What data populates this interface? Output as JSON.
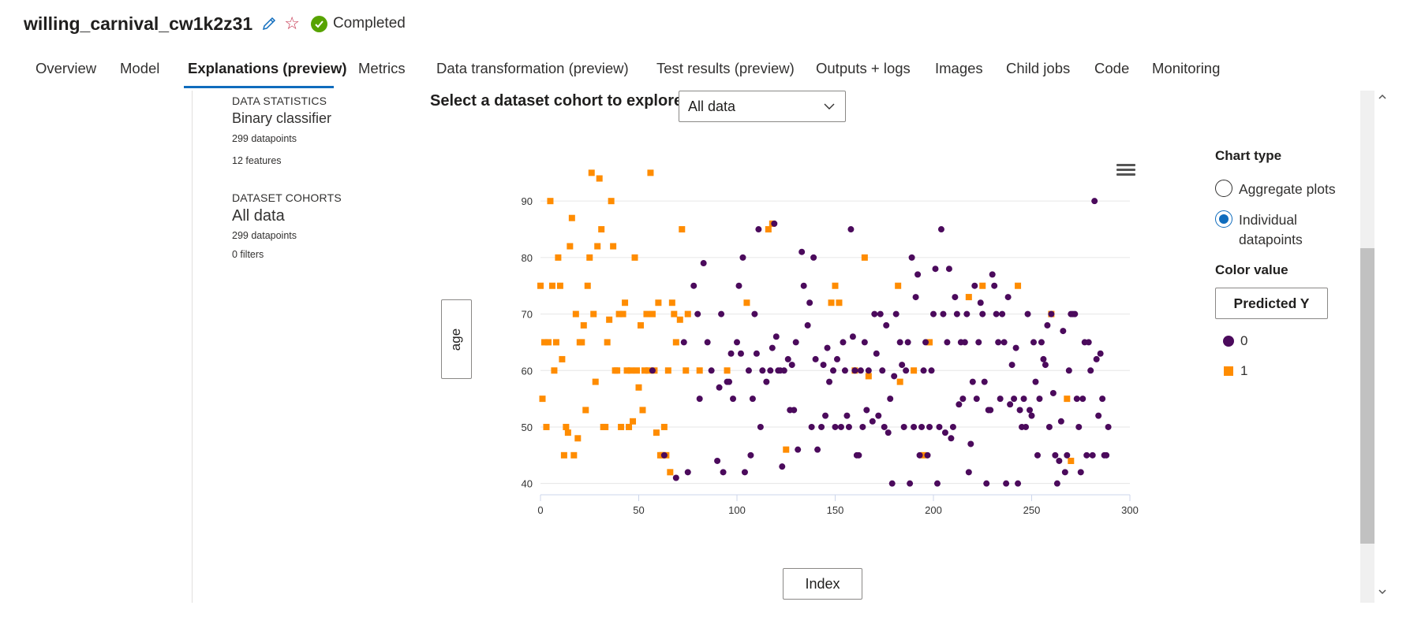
{
  "header": {
    "title": "willing_carnival_cw1k2z31",
    "status": "Completed",
    "edit_icon": "pencil-icon",
    "favorite_icon": "star-outline-icon",
    "status_icon": "check-circle-icon",
    "status_color": "#57a300"
  },
  "tabs": [
    {
      "label": "Overview"
    },
    {
      "label": "Model"
    },
    {
      "label": "Explanations (preview)",
      "active": true
    },
    {
      "label": "Metrics"
    },
    {
      "label": "Data transformation (preview)"
    },
    {
      "label": "Test results (preview)"
    },
    {
      "label": "Outputs + logs"
    },
    {
      "label": "Images"
    },
    {
      "label": "Child jobs"
    },
    {
      "label": "Code"
    },
    {
      "label": "Monitoring"
    }
  ],
  "sidebar": {
    "stats_header": "DATA STATISTICS",
    "classifier": "Binary classifier",
    "datapoints": "299 datapoints",
    "features": "12 features",
    "cohorts_header": "DATASET COHORTS",
    "cohort_name": "All data",
    "cohort_datapoints": "299 datapoints",
    "cohort_filters": "0 filters"
  },
  "cohort": {
    "label": "Select a dataset cohort to explore",
    "selected": "All data"
  },
  "axes": {
    "y_button": "age",
    "x_button": "Index"
  },
  "options": {
    "chart_type_label": "Chart type",
    "aggregate_label": "Aggregate plots",
    "individual_label": "Individual datapoints",
    "selected_chart_type": "Individual datapoints",
    "color_value_label": "Color value",
    "color_value_button": "Predicted Y",
    "legend": [
      {
        "label": "0",
        "color": "#4b0a5c",
        "shape": "circle"
      },
      {
        "label": "1",
        "color": "#ff8c00",
        "shape": "square"
      }
    ]
  },
  "chart_data": {
    "type": "scatter",
    "xlabel": "Index",
    "ylabel": "age",
    "xlim": [
      0,
      300
    ],
    "ylim": [
      38,
      97
    ],
    "xticks": [
      0,
      50,
      100,
      150,
      200,
      250,
      300
    ],
    "yticks": [
      40,
      50,
      60,
      70,
      80,
      90
    ],
    "grid": true,
    "legend_placement": "right",
    "series": [
      {
        "name": "1",
        "color": "#ff8c00",
        "marker": "square",
        "points": [
          [
            0,
            75
          ],
          [
            1,
            55
          ],
          [
            2,
            65
          ],
          [
            3,
            50
          ],
          [
            4,
            65
          ],
          [
            5,
            90
          ],
          [
            6,
            75
          ],
          [
            7,
            60
          ],
          [
            8,
            65
          ],
          [
            9,
            80
          ],
          [
            10,
            75
          ],
          [
            11,
            62
          ],
          [
            12,
            45
          ],
          [
            13,
            50
          ],
          [
            14,
            49
          ],
          [
            15,
            82
          ],
          [
            16,
            87
          ],
          [
            17,
            45
          ],
          [
            18,
            70
          ],
          [
            19,
            48
          ],
          [
            20,
            65
          ],
          [
            21,
            65
          ],
          [
            22,
            68
          ],
          [
            23,
            53
          ],
          [
            24,
            75
          ],
          [
            25,
            80
          ],
          [
            26,
            95
          ],
          [
            27,
            70
          ],
          [
            28,
            58
          ],
          [
            29,
            82
          ],
          [
            30,
            94
          ],
          [
            31,
            85
          ],
          [
            32,
            50
          ],
          [
            33,
            50
          ],
          [
            34,
            65
          ],
          [
            35,
            69
          ],
          [
            36,
            90
          ],
          [
            37,
            82
          ],
          [
            38,
            60
          ],
          [
            39,
            60
          ],
          [
            40,
            70
          ],
          [
            41,
            50
          ],
          [
            42,
            70
          ],
          [
            43,
            72
          ],
          [
            44,
            60
          ],
          [
            45,
            50
          ],
          [
            46,
            60
          ],
          [
            47,
            51
          ],
          [
            48,
            80
          ],
          [
            49,
            60
          ],
          [
            50,
            57
          ],
          [
            51,
            68
          ],
          [
            52,
            53
          ],
          [
            53,
            60
          ],
          [
            54,
            70
          ],
          [
            55,
            60
          ],
          [
            56,
            95
          ],
          [
            57,
            70
          ],
          [
            58,
            60
          ],
          [
            59,
            49
          ],
          [
            60,
            72
          ],
          [
            61,
            45
          ],
          [
            62,
            45
          ],
          [
            63,
            50
          ],
          [
            64,
            45
          ],
          [
            65,
            60
          ],
          [
            66,
            42
          ],
          [
            67,
            72
          ],
          [
            68,
            70
          ],
          [
            69,
            65
          ],
          [
            71,
            69
          ],
          [
            72,
            85
          ],
          [
            74,
            60
          ],
          [
            75,
            70
          ],
          [
            81,
            60
          ],
          [
            95,
            60
          ],
          [
            105,
            72
          ],
          [
            116,
            85
          ],
          [
            118,
            86
          ],
          [
            125,
            46
          ],
          [
            148,
            72
          ],
          [
            150,
            75
          ],
          [
            152,
            72
          ],
          [
            160,
            60
          ],
          [
            165,
            80
          ],
          [
            167,
            59
          ],
          [
            182,
            75
          ],
          [
            183,
            58
          ],
          [
            190,
            60
          ],
          [
            195,
            45
          ],
          [
            198,
            65
          ],
          [
            218,
            73
          ],
          [
            225,
            75
          ],
          [
            243,
            75
          ],
          [
            260,
            70
          ],
          [
            268,
            55
          ],
          [
            270,
            44
          ]
        ]
      },
      {
        "name": "0",
        "color": "#4b0a5c",
        "marker": "circle",
        "points": [
          [
            57,
            60
          ],
          [
            63,
            45
          ],
          [
            69,
            41
          ],
          [
            73,
            65
          ],
          [
            75,
            42
          ],
          [
            78,
            75
          ],
          [
            80,
            70
          ],
          [
            81,
            55
          ],
          [
            83,
            79
          ],
          [
            85,
            65
          ],
          [
            87,
            60
          ],
          [
            90,
            44
          ],
          [
            91,
            57
          ],
          [
            92,
            70
          ],
          [
            93,
            42
          ],
          [
            95,
            58
          ],
          [
            96,
            58
          ],
          [
            97,
            63
          ],
          [
            98,
            55
          ],
          [
            100,
            65
          ],
          [
            101,
            75
          ],
          [
            102,
            63
          ],
          [
            103,
            80
          ],
          [
            104,
            42
          ],
          [
            106,
            60
          ],
          [
            107,
            45
          ],
          [
            108,
            55
          ],
          [
            109,
            70
          ],
          [
            110,
            63
          ],
          [
            111,
            85
          ],
          [
            112,
            50
          ],
          [
            113,
            60
          ],
          [
            115,
            58
          ],
          [
            117,
            60
          ],
          [
            118,
            64
          ],
          [
            119,
            86
          ],
          [
            120,
            66
          ],
          [
            121,
            60
          ],
          [
            122,
            60
          ],
          [
            123,
            43
          ],
          [
            124,
            60
          ],
          [
            126,
            62
          ],
          [
            127,
            53
          ],
          [
            128,
            61
          ],
          [
            129,
            53
          ],
          [
            130,
            65
          ],
          [
            131,
            46
          ],
          [
            133,
            81
          ],
          [
            134,
            75
          ],
          [
            136,
            68
          ],
          [
            137,
            72
          ],
          [
            138,
            50
          ],
          [
            139,
            80
          ],
          [
            140,
            62
          ],
          [
            141,
            46
          ],
          [
            143,
            50
          ],
          [
            144,
            61
          ],
          [
            145,
            52
          ],
          [
            146,
            64
          ],
          [
            147,
            58
          ],
          [
            149,
            60
          ],
          [
            150,
            50
          ],
          [
            151,
            62
          ],
          [
            153,
            50
          ],
          [
            154,
            65
          ],
          [
            155,
            60
          ],
          [
            156,
            52
          ],
          [
            157,
            50
          ],
          [
            158,
            85
          ],
          [
            159,
            66
          ],
          [
            160,
            60
          ],
          [
            161,
            45
          ],
          [
            162,
            45
          ],
          [
            163,
            60
          ],
          [
            164,
            50
          ],
          [
            165,
            65
          ],
          [
            166,
            53
          ],
          [
            167,
            60
          ],
          [
            169,
            51
          ],
          [
            170,
            70
          ],
          [
            171,
            63
          ],
          [
            172,
            52
          ],
          [
            173,
            70
          ],
          [
            174,
            60
          ],
          [
            175,
            50
          ],
          [
            176,
            68
          ],
          [
            177,
            49
          ],
          [
            178,
            55
          ],
          [
            179,
            40
          ],
          [
            180,
            59
          ],
          [
            181,
            70
          ],
          [
            183,
            65
          ],
          [
            184,
            61
          ],
          [
            185,
            50
          ],
          [
            186,
            60
          ],
          [
            187,
            65
          ],
          [
            188,
            40
          ],
          [
            189,
            80
          ],
          [
            190,
            50
          ],
          [
            191,
            73
          ],
          [
            192,
            77
          ],
          [
            193,
            45
          ],
          [
            194,
            50
          ],
          [
            195,
            60
          ],
          [
            196,
            65
          ],
          [
            197,
            45
          ],
          [
            198,
            50
          ],
          [
            199,
            60
          ],
          [
            200,
            70
          ],
          [
            201,
            78
          ],
          [
            202,
            40
          ],
          [
            203,
            50
          ],
          [
            204,
            85
          ],
          [
            205,
            70
          ],
          [
            206,
            49
          ],
          [
            207,
            65
          ],
          [
            208,
            78
          ],
          [
            209,
            48
          ],
          [
            210,
            50
          ],
          [
            211,
            73
          ],
          [
            212,
            70
          ],
          [
            213,
            54
          ],
          [
            214,
            65
          ],
          [
            215,
            55
          ],
          [
            216,
            65
          ],
          [
            217,
            70
          ],
          [
            218,
            42
          ],
          [
            219,
            47
          ],
          [
            220,
            58
          ],
          [
            221,
            75
          ],
          [
            222,
            55
          ],
          [
            223,
            65
          ],
          [
            224,
            72
          ],
          [
            225,
            70
          ],
          [
            226,
            58
          ],
          [
            227,
            40
          ],
          [
            228,
            53
          ],
          [
            229,
            53
          ],
          [
            230,
            77
          ],
          [
            231,
            75
          ],
          [
            232,
            70
          ],
          [
            233,
            65
          ],
          [
            234,
            55
          ],
          [
            235,
            70
          ],
          [
            236,
            65
          ],
          [
            237,
            40
          ],
          [
            238,
            73
          ],
          [
            239,
            54
          ],
          [
            240,
            61
          ],
          [
            241,
            55
          ],
          [
            242,
            64
          ],
          [
            243,
            40
          ],
          [
            244,
            53
          ],
          [
            245,
            50
          ],
          [
            246,
            55
          ],
          [
            247,
            50
          ],
          [
            248,
            70
          ],
          [
            249,
            53
          ],
          [
            250,
            52
          ],
          [
            251,
            65
          ],
          [
            252,
            58
          ],
          [
            253,
            45
          ],
          [
            254,
            55
          ],
          [
            255,
            65
          ],
          [
            256,
            62
          ],
          [
            257,
            61
          ],
          [
            258,
            68
          ],
          [
            259,
            50
          ],
          [
            260,
            70
          ],
          [
            261,
            56
          ],
          [
            262,
            45
          ],
          [
            263,
            40
          ],
          [
            264,
            44
          ],
          [
            265,
            51
          ],
          [
            266,
            67
          ],
          [
            267,
            42
          ],
          [
            268,
            45
          ],
          [
            269,
            60
          ],
          [
            270,
            70
          ],
          [
            271,
            70
          ],
          [
            272,
            70
          ],
          [
            273,
            55
          ],
          [
            274,
            50
          ],
          [
            275,
            42
          ],
          [
            276,
            55
          ],
          [
            277,
            65
          ],
          [
            278,
            45
          ],
          [
            279,
            65
          ],
          [
            280,
            60
          ],
          [
            281,
            45
          ],
          [
            282,
            90
          ],
          [
            283,
            62
          ],
          [
            284,
            52
          ],
          [
            285,
            63
          ],
          [
            286,
            55
          ],
          [
            287,
            45
          ],
          [
            288,
            45
          ],
          [
            289,
            50
          ]
        ]
      }
    ]
  }
}
